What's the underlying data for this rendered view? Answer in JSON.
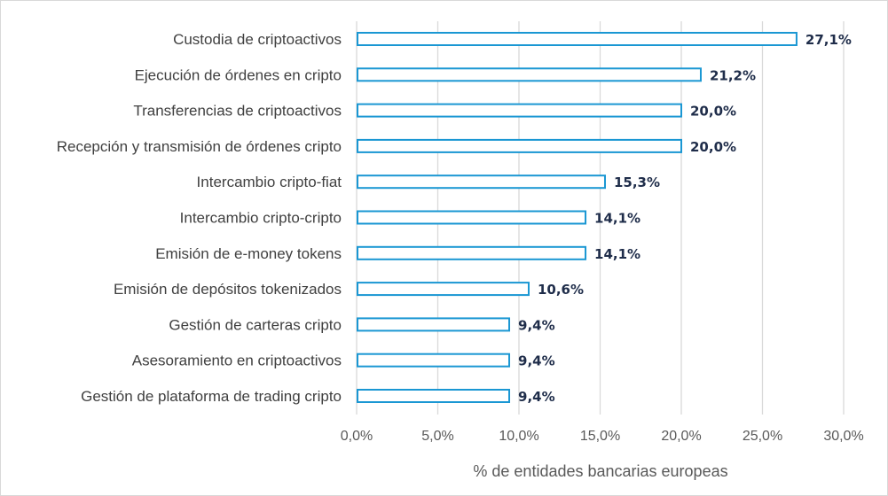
{
  "chart_data": {
    "type": "bar",
    "orientation": "horizontal",
    "title": "",
    "xlabel": "% de entidades bancarias europeas",
    "ylabel": "",
    "xlim": [
      0,
      30
    ],
    "x_ticks": [
      0,
      5,
      10,
      15,
      20,
      25,
      30
    ],
    "x_tick_labels": [
      "0,0%",
      "5,0%",
      "10,0%",
      "15,0%",
      "20,0%",
      "25,0%",
      "30,0%"
    ],
    "grid": "vertical",
    "colors": {
      "bar_stroke": "#1a97d3",
      "bar_fill": "#ffffff",
      "grid": "#d9d9d9",
      "value_text": "#1f2d4a"
    },
    "categories": [
      "Custodia de criptoactivos",
      "Ejecución de órdenes en cripto",
      "Transferencias de criptoactivos",
      "Recepción y transmisión de órdenes cripto",
      "Intercambio cripto-fiat",
      "Intercambio cripto-cripto",
      "Emisión de e-money tokens",
      "Emisión de depósitos tokenizados",
      "Gestión de carteras cripto",
      "Asesoramiento en criptoactivos",
      "Gestión de plataforma de trading cripto"
    ],
    "values": [
      27.1,
      21.2,
      20.0,
      20.0,
      15.3,
      14.1,
      14.1,
      10.6,
      9.4,
      9.4,
      9.4
    ],
    "value_labels": [
      "27,1%",
      "21,2%",
      "20,0%",
      "20,0%",
      "15,3%",
      "14,1%",
      "14,1%",
      "10,6%",
      "9,4%",
      "9,4%",
      "9,4%"
    ]
  }
}
